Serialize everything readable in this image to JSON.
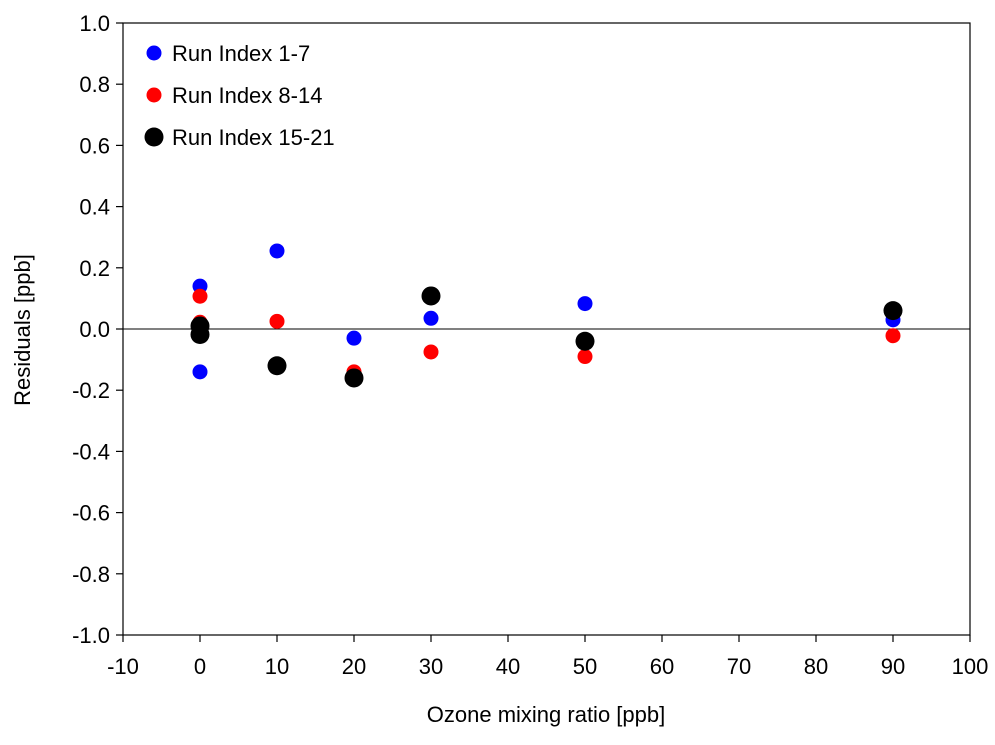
{
  "chart_data": {
    "type": "scatter",
    "title": "",
    "xlabel": "Ozone mixing ratio [ppb]",
    "ylabel": "Residuals [ppb]",
    "xlim": [
      -10,
      100
    ],
    "ylim": [
      -1.0,
      1.0
    ],
    "xticks": [
      -10,
      0,
      10,
      20,
      30,
      40,
      50,
      60,
      70,
      80,
      90,
      100
    ],
    "yticks": [
      1.0,
      0.8,
      0.6,
      0.4,
      0.2,
      0.0,
      -0.2,
      -0.4,
      -0.6,
      -0.8,
      -1.0
    ],
    "xtick_labels": [
      "-10",
      "0",
      "10",
      "20",
      "30",
      "40",
      "50",
      "60",
      "70",
      "80",
      "90",
      "100"
    ],
    "ytick_labels": [
      "1.0",
      "0.8",
      "0.6",
      "0.4",
      "0.2",
      "0.0",
      "-0.2",
      "-0.4",
      "-0.6",
      "-0.8",
      "-1.0"
    ],
    "zero_line": true,
    "grid": false,
    "legend_position": "top-left",
    "series": [
      {
        "name": "Run Index 1-7",
        "color": "#0000ff",
        "marker": "small-circle",
        "points": [
          {
            "x": 0,
            "y": 0.14
          },
          {
            "x": 0,
            "y": -0.14
          },
          {
            "x": 10,
            "y": 0.255
          },
          {
            "x": 20,
            "y": -0.03
          },
          {
            "x": 30,
            "y": 0.035
          },
          {
            "x": 50,
            "y": 0.083
          },
          {
            "x": 90,
            "y": 0.03
          }
        ]
      },
      {
        "name": "Run Index 8-14",
        "color": "#ff0000",
        "marker": "small-circle",
        "points": [
          {
            "x": 0,
            "y": 0.107
          },
          {
            "x": 0,
            "y": 0.022
          },
          {
            "x": 10,
            "y": 0.025
          },
          {
            "x": 20,
            "y": -0.14
          },
          {
            "x": 30,
            "y": -0.075
          },
          {
            "x": 50,
            "y": -0.09
          },
          {
            "x": 90,
            "y": -0.022
          }
        ]
      },
      {
        "name": "Run Index 15-21",
        "color": "#000000",
        "marker": "large-circle",
        "points": [
          {
            "x": 0,
            "y": 0.01
          },
          {
            "x": 0,
            "y": -0.018
          },
          {
            "x": 10,
            "y": -0.12
          },
          {
            "x": 20,
            "y": -0.16
          },
          {
            "x": 30,
            "y": 0.108
          },
          {
            "x": 50,
            "y": -0.04
          },
          {
            "x": 90,
            "y": 0.06
          }
        ]
      }
    ]
  }
}
